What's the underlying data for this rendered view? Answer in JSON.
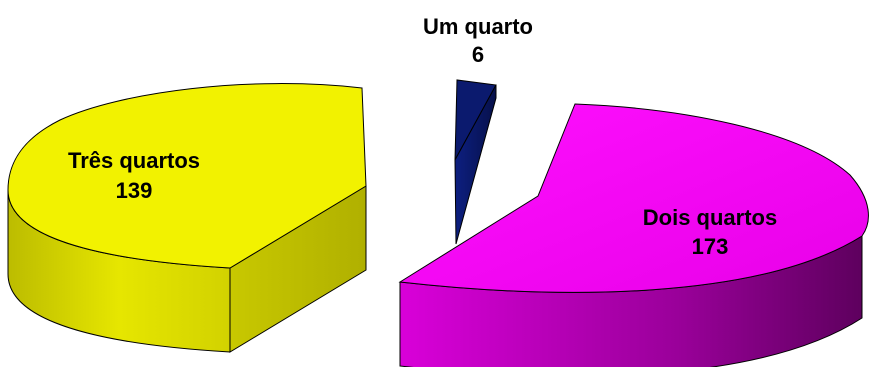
{
  "chart_data": {
    "type": "pie",
    "style": "3d-exploded",
    "title": "",
    "legend": "none",
    "slices": [
      {
        "label": "Um quarto",
        "value": 6,
        "color": "#0b1a6e"
      },
      {
        "label": "Dois quartos",
        "value": 173,
        "color": "#f000f0"
      },
      {
        "label": "Três quartos",
        "value": 139,
        "color": "#f2f200"
      }
    ]
  }
}
